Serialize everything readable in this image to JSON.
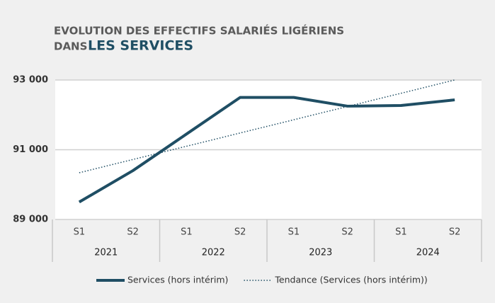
{
  "chart_data": {
    "type": "line",
    "title_line1": "EVOLUTION DES EFFECTIFS SALARIÉS LIGÉRIENS",
    "title_line2": "DANS",
    "title_highlight": "LES SERVICES",
    "categories": [
      "S1",
      "S2",
      "S1",
      "S2",
      "S1",
      "S2",
      "S1",
      "S2"
    ],
    "group_labels": [
      "2021",
      "2022",
      "2023",
      "2024"
    ],
    "series": [
      {
        "name": "Services (hors intérim)",
        "color": "#1f4e64",
        "style": "solid",
        "values": [
          89500,
          90400,
          91450,
          92500,
          92500,
          92250,
          92270,
          92430
        ]
      },
      {
        "name": "Tendance (Services (hors intérim))",
        "color": "#1f4e64",
        "style": "dotted",
        "values": [
          90340,
          90720,
          91100,
          91480,
          91860,
          92240,
          92620,
          93000
        ]
      }
    ],
    "ylim": [
      89000,
      93000
    ],
    "yticks": [
      {
        "value": 89000,
        "label": "89 000"
      },
      {
        "value": 91000,
        "label": "91 000"
      },
      {
        "value": 93000,
        "label": "93 000"
      }
    ],
    "grid": true
  }
}
